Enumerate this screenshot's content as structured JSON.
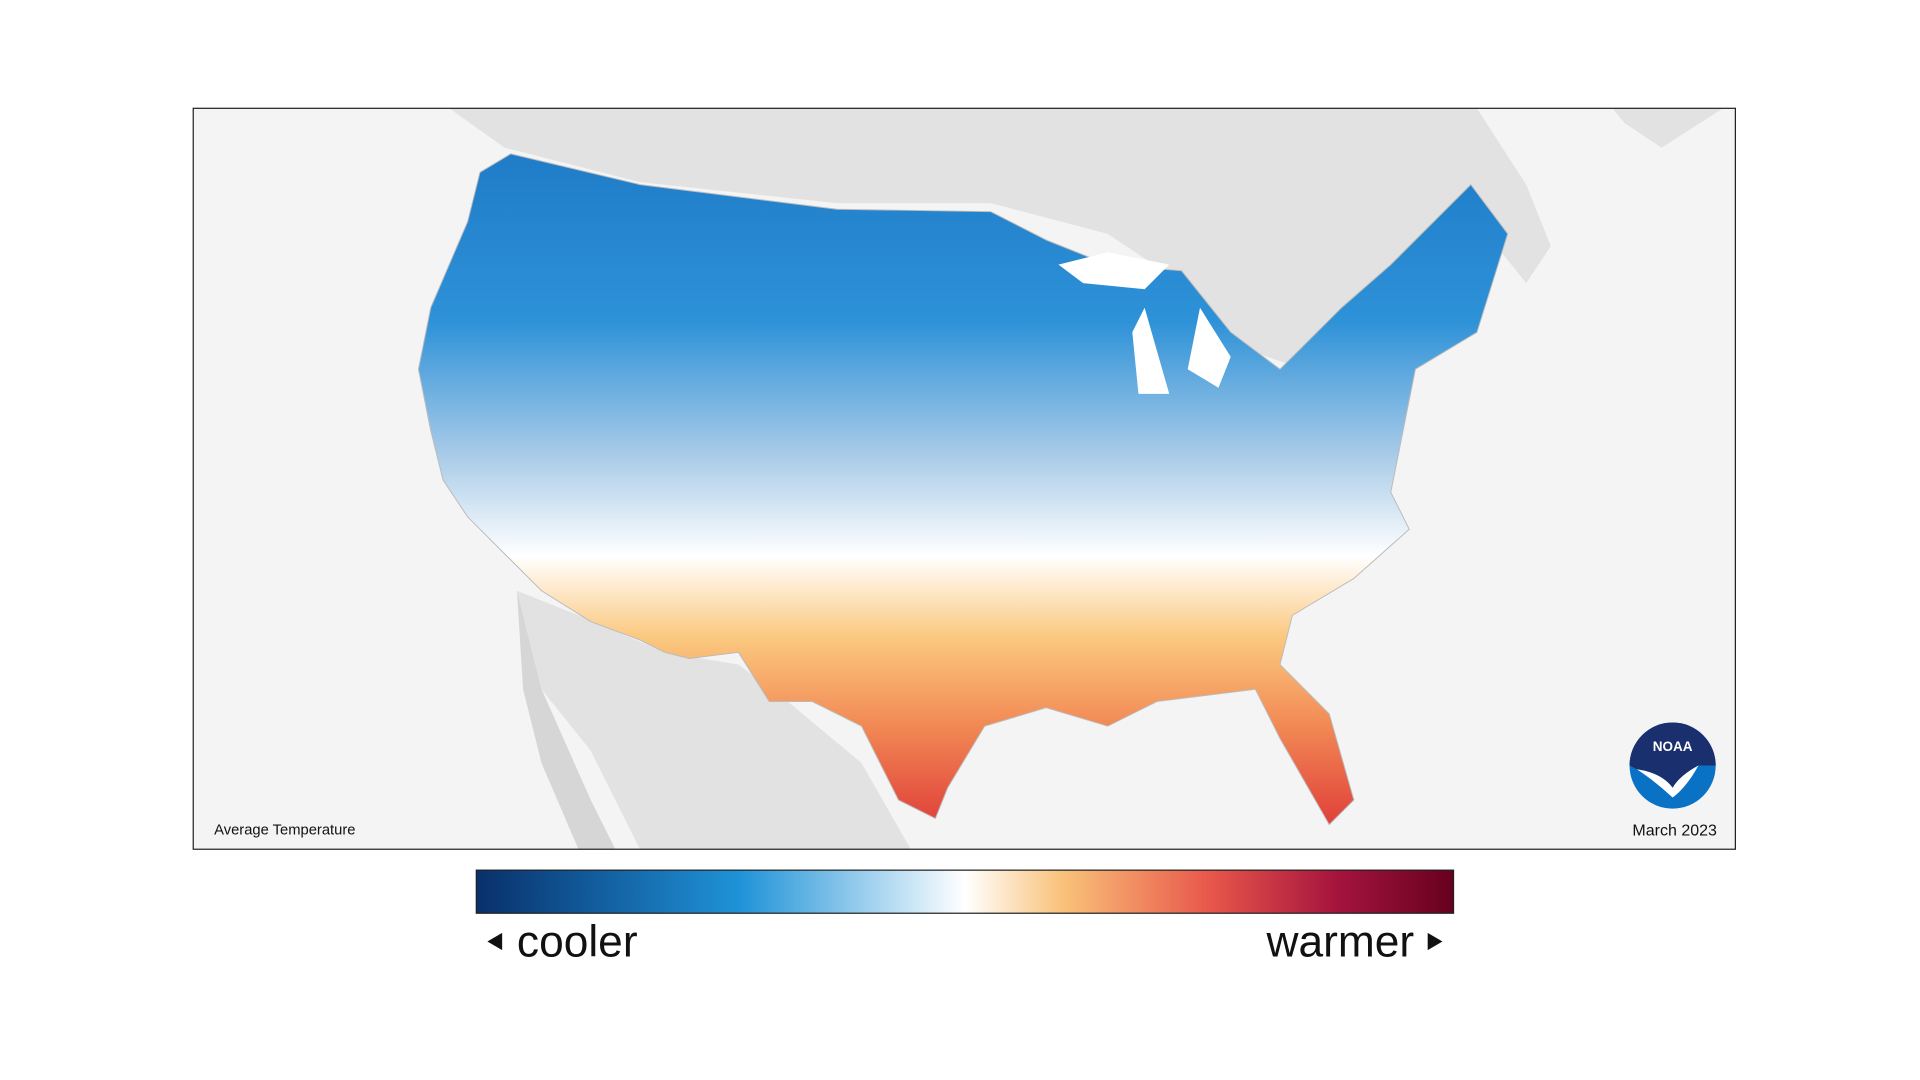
{
  "map": {
    "label": "Average Temperature",
    "date": "March 2023"
  },
  "legend": {
    "low": "cooler",
    "high": "warmer"
  },
  "logo": {
    "text": "NOAA"
  }
}
